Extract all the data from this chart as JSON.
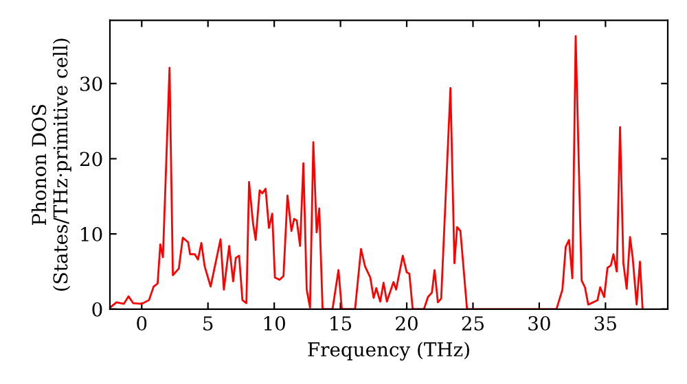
{
  "chart_data": {
    "type": "line",
    "xlabel": "Frequency (THz)",
    "ylabel": "Phonon DOS\n(States/THz·primitive cell)",
    "xlim": [
      -2.4,
      39.7
    ],
    "ylim": [
      0,
      38.4
    ],
    "xticks": [
      0,
      5,
      10,
      15,
      20,
      25,
      30,
      35
    ],
    "yticks": [
      0,
      10,
      20,
      30
    ],
    "grid": false,
    "marker": "none",
    "line_style": "solid",
    "series": [
      {
        "color": "#ff0000",
        "x": [
          -2.4,
          -1.9,
          -1.35,
          -1.0,
          -0.65,
          0.0,
          0.55,
          0.9,
          1.2,
          1.4,
          1.6,
          2.1,
          2.35,
          2.8,
          3.1,
          3.5,
          3.65,
          4.0,
          4.25,
          4.5,
          4.75,
          5.2,
          5.95,
          6.2,
          6.6,
          6.9,
          7.1,
          7.35,
          7.6,
          7.9,
          8.1,
          8.4,
          8.6,
          8.9,
          9.1,
          9.35,
          9.6,
          9.85,
          10.05,
          10.4,
          10.7,
          11.0,
          11.3,
          11.5,
          11.7,
          11.95,
          12.2,
          12.45,
          12.7,
          12.95,
          13.2,
          13.4,
          13.65,
          14.4,
          14.85,
          15.1,
          16.1,
          16.55,
          16.85,
          17.25,
          17.5,
          17.7,
          18.0,
          18.25,
          18.5,
          19.0,
          19.2,
          19.7,
          20.0,
          20.2,
          20.45,
          21.3,
          21.6,
          21.9,
          22.1,
          22.35,
          22.6,
          23.3,
          23.6,
          23.8,
          24.05,
          24.55,
          31.3,
          31.75,
          32.0,
          32.25,
          32.5,
          32.75,
          33.2,
          33.45,
          33.7,
          34.05,
          34.4,
          34.6,
          34.9,
          35.15,
          35.4,
          35.6,
          35.85,
          36.1,
          36.35,
          36.6,
          36.85,
          37.05,
          37.35,
          37.6,
          37.8
        ],
        "values": [
          0.2,
          0.9,
          0.7,
          1.7,
          0.8,
          0.7,
          1.2,
          3.0,
          3.4,
          8.6,
          6.9,
          32.1,
          4.5,
          5.4,
          9.5,
          8.9,
          7.3,
          7.3,
          6.6,
          8.8,
          5.7,
          3.0,
          9.3,
          2.6,
          8.4,
          3.7,
          6.8,
          7.1,
          1.2,
          0.8,
          16.9,
          11.4,
          9.2,
          15.8,
          15.4,
          16.0,
          10.8,
          12.7,
          4.2,
          3.9,
          4.4,
          15.1,
          10.4,
          12.0,
          11.8,
          8.4,
          19.4,
          2.6,
          0.2,
          22.2,
          10.2,
          13.4,
          0,
          0,
          5.2,
          0,
          0,
          8.0,
          5.7,
          4.2,
          1.5,
          2.8,
          1.0,
          3.5,
          1.0,
          3.6,
          2.6,
          7.1,
          4.9,
          4.7,
          0,
          0,
          1.6,
          2.2,
          5.2,
          0.9,
          1.4,
          29.4,
          6.1,
          10.9,
          10.4,
          0,
          0,
          2.6,
          8.3,
          9.2,
          4.1,
          36.3,
          3.8,
          2.9,
          0.6,
          0.9,
          1.2,
          2.9,
          1.6,
          5.5,
          5.8,
          7.3,
          5.0,
          24.2,
          6.1,
          2.7,
          9.6,
          6.9,
          0.6,
          6.3,
          0
        ]
      }
    ]
  }
}
